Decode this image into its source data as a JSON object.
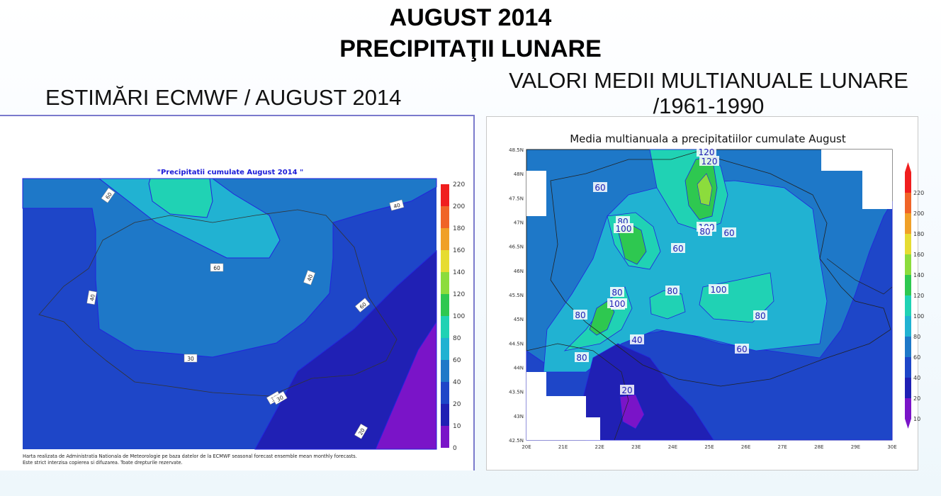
{
  "header": {
    "title_line1": "AUGUST 2014",
    "title_line2": "PRECIPITAŢII LUNARE"
  },
  "left_panel": {
    "heading": "ESTIMĂRI ECMWF / AUGUST 2014",
    "map_title": "\"Precipitatii cumulate August 2014 \"",
    "colorbar_ticks": [
      "220",
      "200",
      "180",
      "160",
      "140",
      "120",
      "100",
      "80",
      "60",
      "40",
      "20",
      "10",
      "0"
    ],
    "contour_labels": [
      "60",
      "40",
      "60",
      "40",
      "40",
      "60",
      "30",
      "30",
      "20",
      "30"
    ],
    "footnote_line1": "Harta realizata de Administratia Nationala de Meteorologie pe baza datelor de la ECMWF seasonal forecast ensemble mean monthly forecasts.",
    "footnote_line2": "Este strict interzisa copierea si difuzarea. Toate drepturile rezervate."
  },
  "right_panel": {
    "heading_line1": "VALORI MEDII MULTIANUALE LUNARE",
    "heading_line2": "/1961-1990",
    "map_title": "Media multianuala a precipitatiilor cumulate August",
    "lat_ticks": [
      "48N",
      "47.5N",
      "47N",
      "46.5N",
      "46N",
      "45.5N",
      "45N",
      "44.5N",
      "44N",
      "43.5N",
      "43N",
      "42.5N"
    ],
    "lat_ticks_top": "48.5N",
    "lon_ticks": [
      "20E",
      "21E",
      "22E",
      "23E",
      "24E",
      "25E",
      "26E",
      "27E",
      "28E",
      "29E",
      "30E"
    ],
    "colorbar_ticks": [
      "220",
      "200",
      "180",
      "160",
      "140",
      "120",
      "100",
      "80",
      "60",
      "40",
      "20",
      "10"
    ],
    "contour_labels": [
      "120",
      "120",
      "60",
      "80",
      "100",
      "100",
      "80",
      "60",
      "60",
      "80",
      "100",
      "80",
      "80",
      "80",
      "80",
      "100",
      "40",
      "60",
      "80",
      "20"
    ]
  },
  "colors": {
    "purple": "#7a14c8",
    "dark_blue": "#2020b4",
    "blue": "#1e46c8",
    "mid_blue": "#1e78c8",
    "cyan": "#21b2d2",
    "teal": "#20d2b4",
    "green": "#2ec850",
    "light_green": "#8cdc3c",
    "yellow": "#e6dc32",
    "orange": "#f0a028",
    "red_orange": "#f06428",
    "red": "#f01e1e"
  }
}
